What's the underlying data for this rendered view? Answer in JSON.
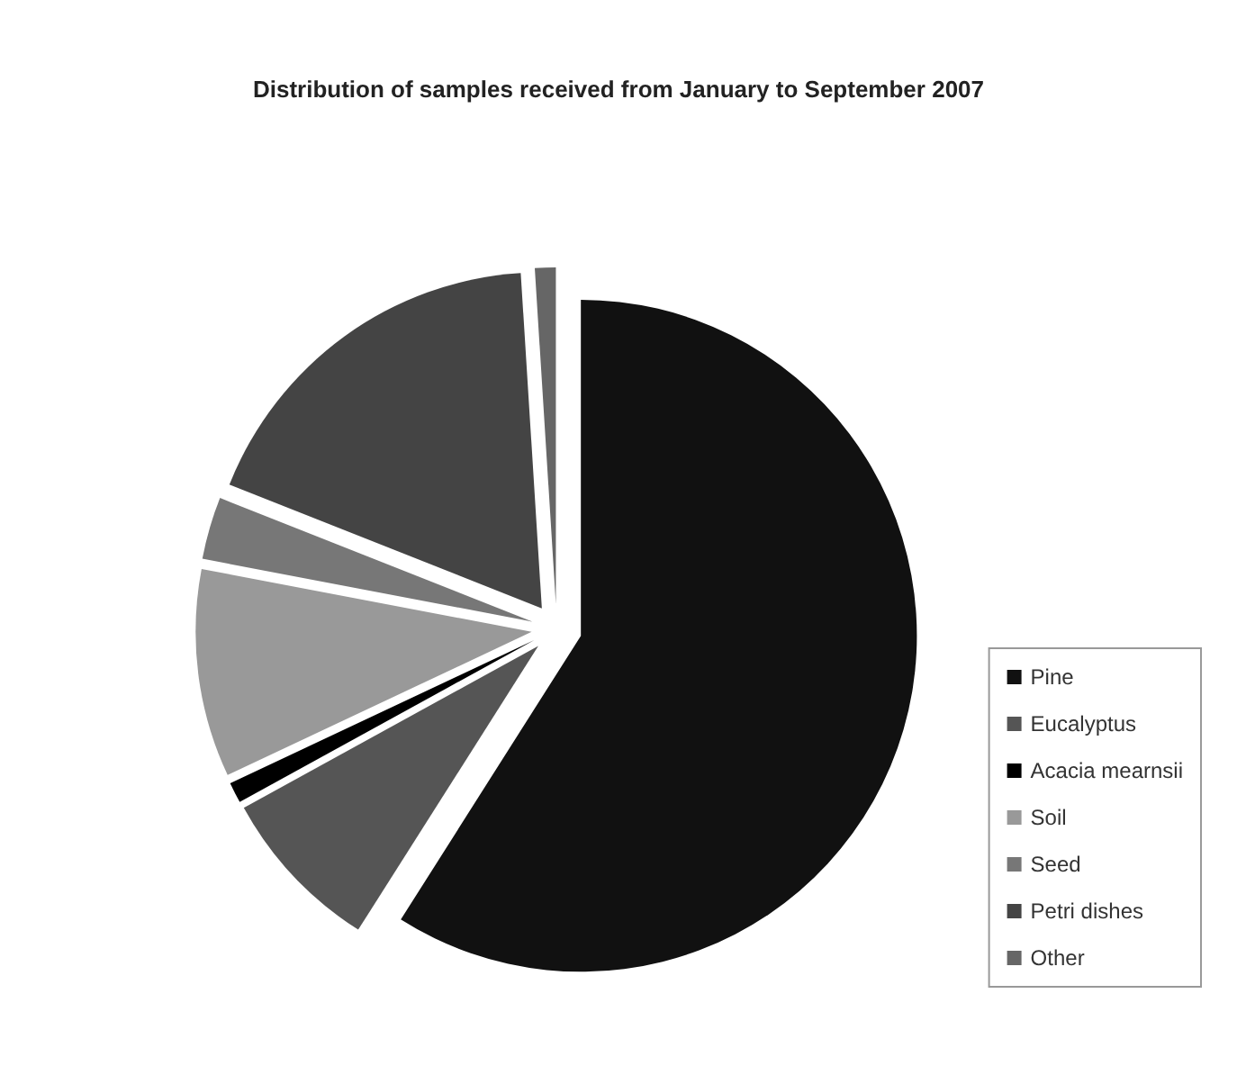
{
  "chart_data": {
    "type": "pie",
    "title": "Distribution of samples received from January to September 2007",
    "categories": [
      "Pine",
      "Eucalyptus",
      "Acacia mearnsii",
      "Soil",
      "Seed",
      "Petri dishes",
      "Other"
    ],
    "values": [
      59,
      8,
      1,
      10,
      3,
      18,
      1
    ],
    "colors": [
      "#111111",
      "#555555",
      "#000000",
      "#999999",
      "#777777",
      "#444444",
      "#666666"
    ],
    "legend": "right"
  }
}
